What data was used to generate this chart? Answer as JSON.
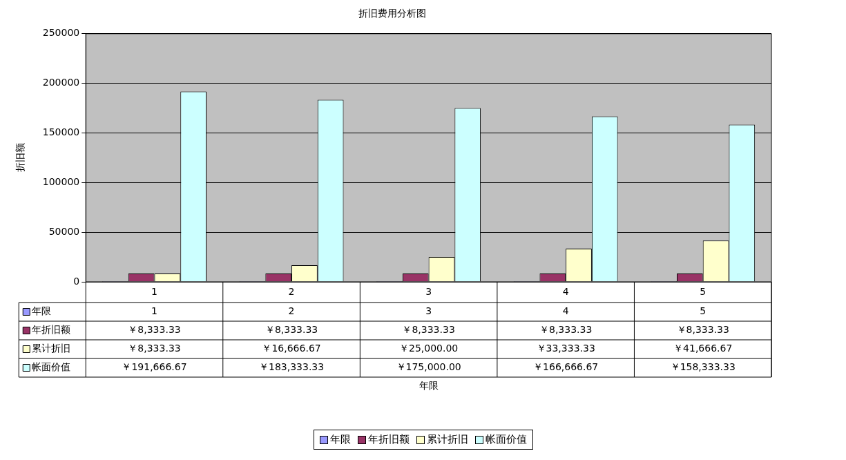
{
  "chart_data": {
    "type": "bar",
    "title": "折旧费用分析图",
    "annotations": [
      "年限"
    ],
    "ylabel": "折旧额",
    "categories": [
      "1",
      "2",
      "3",
      "4",
      "5"
    ],
    "series": [
      {
        "name": "年限",
        "color": "#9999ff",
        "values": [
          1,
          2,
          3,
          4,
          5
        ],
        "value_labels": [
          "1",
          "2",
          "3",
          "4",
          "5"
        ]
      },
      {
        "name": "年折旧额",
        "color": "#993366",
        "values": [
          8333.33,
          8333.33,
          8333.33,
          8333.33,
          8333.33
        ],
        "value_labels": [
          "￥8,333.33",
          "￥8,333.33",
          "￥8,333.33",
          "￥8,333.33",
          "￥8,333.33"
        ]
      },
      {
        "name": "累计折旧",
        "color": "#ffffcc",
        "values": [
          8333.33,
          16666.67,
          25000,
          33333.33,
          41666.67
        ],
        "value_labels": [
          "￥8,333.33",
          "￥16,666.67",
          "￥25,000.00",
          "￥33,333.33",
          "￥41,666.67"
        ]
      },
      {
        "name": "帐面价值",
        "color": "#ccffff",
        "values": [
          191666.67,
          183333.33,
          175000,
          166666.67,
          158333.33
        ],
        "value_labels": [
          "￥191,666.67",
          "￥183,333.33",
          "￥175,000.00",
          "￥166,666.67",
          "￥158,333.33"
        ]
      }
    ],
    "ylim": [
      0,
      250000
    ],
    "yticks": [
      0,
      50000,
      100000,
      150000,
      200000,
      250000
    ],
    "grid": "y",
    "legend": "bottom"
  }
}
